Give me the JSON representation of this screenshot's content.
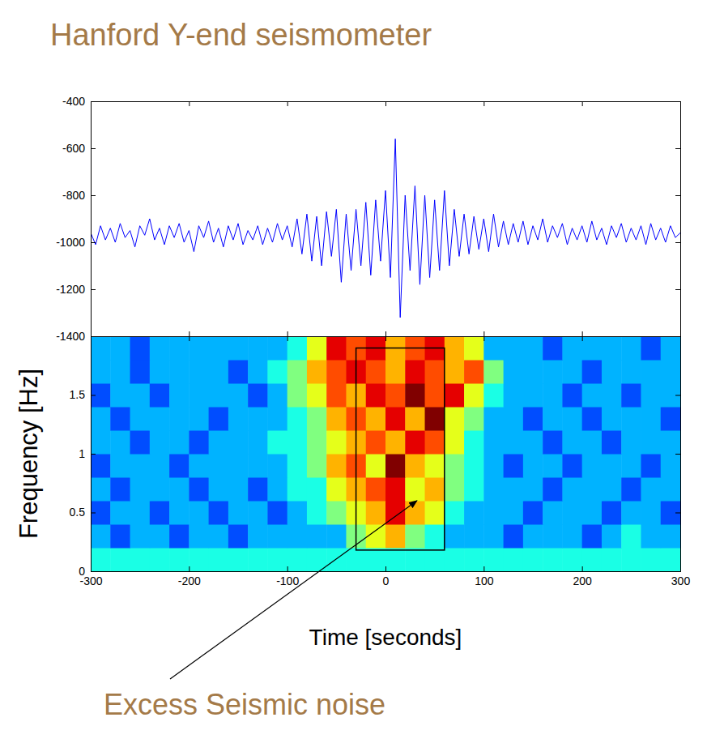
{
  "chart_data": [
    {
      "type": "line",
      "title": "Hanford Y-end seismometer",
      "x": [
        -300,
        -295,
        -290,
        -285,
        -280,
        -275,
        -270,
        -265,
        -260,
        -255,
        -250,
        -245,
        -240,
        -235,
        -230,
        -225,
        -220,
        -215,
        -210,
        -205,
        -200,
        -195,
        -190,
        -185,
        -180,
        -175,
        -170,
        -165,
        -160,
        -155,
        -150,
        -145,
        -140,
        -135,
        -130,
        -125,
        -120,
        -115,
        -110,
        -105,
        -100,
        -95,
        -90,
        -85,
        -80,
        -75,
        -70,
        -65,
        -60,
        -55,
        -50,
        -45,
        -40,
        -35,
        -30,
        -25,
        -20,
        -15,
        -10,
        -5,
        0,
        5,
        10,
        15,
        20,
        25,
        30,
        35,
        40,
        45,
        50,
        55,
        60,
        65,
        70,
        75,
        80,
        85,
        90,
        95,
        100,
        105,
        110,
        115,
        120,
        125,
        130,
        135,
        140,
        145,
        150,
        155,
        160,
        165,
        170,
        175,
        180,
        185,
        190,
        195,
        200,
        205,
        210,
        215,
        220,
        225,
        230,
        235,
        240,
        245,
        250,
        255,
        260,
        265,
        270,
        275,
        280,
        285,
        290,
        295,
        300
      ],
      "series": [
        {
          "color": "#0000ff",
          "values": [
            -960,
            -1010,
            -930,
            -990,
            -940,
            -1000,
            -920,
            -980,
            -950,
            -1020,
            -930,
            -970,
            -900,
            -990,
            -940,
            -1010,
            -930,
            -980,
            -920,
            -1000,
            -950,
            -1040,
            -930,
            -980,
            -910,
            -1000,
            -940,
            -1020,
            -930,
            -990,
            -920,
            -1010,
            -950,
            -990,
            -930,
            -1010,
            -940,
            -1000,
            -920,
            -990,
            -930,
            -1020,
            -900,
            -1050,
            -880,
            -1080,
            -890,
            -1100,
            -870,
            -1060,
            -860,
            -1170,
            -880,
            -1120,
            -860,
            -1100,
            -830,
            -1140,
            -820,
            -1080,
            -780,
            -1150,
            -560,
            -1320,
            -800,
            -1120,
            -760,
            -1180,
            -800,
            -1150,
            -820,
            -1120,
            -780,
            -1100,
            -860,
            -1060,
            -880,
            -1050,
            -890,
            -1030,
            -900,
            -1040,
            -880,
            -1020,
            -910,
            -1010,
            -920,
            -1000,
            -910,
            -1010,
            -930,
            -990,
            -900,
            -1000,
            -930,
            -980,
            -920,
            -1010,
            -940,
            -990,
            -930,
            -1000,
            -910,
            -990,
            -940,
            -1010,
            -930,
            -980,
            -920,
            -1000,
            -940,
            -990,
            -930,
            -1010,
            -920,
            -990,
            -940,
            -1000,
            -930,
            -980,
            -960
          ]
        }
      ],
      "xlim": [
        -300,
        300
      ],
      "xticks": [
        -300,
        -200,
        -100,
        0,
        100,
        200,
        300
      ],
      "ylim": [
        -1400,
        -400
      ],
      "yticks": [
        -1400,
        -1200,
        -1000,
        -800,
        -600,
        -400
      ],
      "tick_labels": "y"
    },
    {
      "type": "heatmap",
      "x_label": "Time [seconds]",
      "y_label": "Frequency [Hz]",
      "x_bins": [
        -300,
        -280,
        -260,
        -240,
        -220,
        -200,
        -180,
        -160,
        -140,
        -120,
        -100,
        -80,
        -60,
        -40,
        -20,
        0,
        20,
        40,
        60,
        80,
        100,
        120,
        140,
        160,
        180,
        200,
        220,
        240,
        260,
        280,
        300
      ],
      "y_bins": [
        0,
        0.2,
        0.4,
        0.6,
        0.8,
        1,
        1.2,
        1.4,
        1.6,
        1.8,
        2
      ],
      "z": [
        [
          4,
          4,
          4,
          4,
          4,
          4,
          4,
          4,
          4,
          4,
          4,
          4,
          4,
          4,
          4,
          4,
          4,
          4,
          4,
          4,
          4,
          4,
          4,
          4,
          4,
          4,
          4,
          4,
          4,
          4
        ],
        [
          3,
          2,
          3,
          3,
          2,
          3,
          3,
          2,
          3,
          3,
          3,
          3,
          3,
          5,
          6,
          7,
          5,
          4,
          3,
          3,
          3,
          2,
          3,
          3,
          3,
          2,
          3,
          4,
          3,
          3
        ],
        [
          2,
          3,
          3,
          2,
          3,
          3,
          2,
          3,
          3,
          2,
          3,
          4,
          5,
          6,
          7,
          9,
          7,
          6,
          4,
          3,
          3,
          3,
          2,
          3,
          3,
          3,
          2,
          3,
          3,
          2
        ],
        [
          3,
          2,
          3,
          3,
          3,
          2,
          3,
          3,
          2,
          3,
          4,
          4,
          6,
          7,
          8,
          9,
          6,
          7,
          5,
          4,
          3,
          3,
          3,
          2,
          3,
          3,
          3,
          2,
          3,
          3
        ],
        [
          2,
          3,
          3,
          3,
          2,
          3,
          3,
          3,
          3,
          3,
          4,
          5,
          7,
          8,
          6,
          10,
          7,
          6,
          5,
          4,
          3,
          2,
          3,
          3,
          2,
          3,
          3,
          3,
          2,
          3
        ],
        [
          3,
          3,
          2,
          3,
          3,
          2,
          3,
          3,
          3,
          4,
          4,
          5,
          6,
          7,
          8,
          7,
          9,
          8,
          6,
          4,
          3,
          3,
          3,
          2,
          3,
          3,
          2,
          3,
          3,
          3
        ],
        [
          3,
          2,
          3,
          3,
          3,
          3,
          2,
          3,
          3,
          3,
          4,
          5,
          7,
          8,
          7,
          9,
          7,
          10,
          6,
          5,
          3,
          3,
          2,
          3,
          3,
          2,
          3,
          3,
          3,
          2
        ],
        [
          2,
          3,
          3,
          2,
          3,
          3,
          3,
          3,
          2,
          3,
          5,
          6,
          8,
          7,
          9,
          8,
          10,
          8,
          9,
          6,
          4,
          3,
          3,
          3,
          2,
          3,
          3,
          2,
          3,
          3
        ],
        [
          3,
          3,
          2,
          3,
          3,
          3,
          3,
          2,
          3,
          4,
          5,
          7,
          8,
          9,
          8,
          7,
          9,
          8,
          7,
          8,
          5,
          3,
          3,
          3,
          3,
          2,
          3,
          3,
          3,
          3
        ],
        [
          3,
          3,
          2,
          3,
          3,
          3,
          3,
          3,
          3,
          3,
          4,
          6,
          9,
          8,
          9,
          7,
          8,
          9,
          7,
          6,
          3,
          3,
          3,
          2,
          3,
          3,
          3,
          3,
          2,
          3
        ]
      ],
      "zlim": [
        0,
        10
      ],
      "xlim": [
        -300,
        300
      ],
      "xticks": [
        -300,
        -200,
        -100,
        0,
        100,
        200,
        300
      ],
      "ylim": [
        0,
        2
      ],
      "yticks": [
        0,
        0.5,
        1,
        1.5
      ],
      "annotations": [
        {
          "text": "Excess Seismic noise",
          "box": {
            "x": [
              -30,
              60
            ],
            "y": [
              0.18,
              1.9
            ]
          },
          "arrow_to": {
            "x": 32,
            "y": 0.6
          }
        }
      ]
    }
  ]
}
